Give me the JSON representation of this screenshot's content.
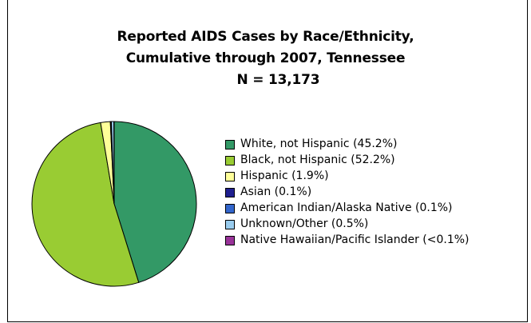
{
  "chart_data": {
    "type": "pie",
    "title": [
      "Reported AIDS Cases by Race/Ethnicity,",
      "Cumulative through 2007, Tennessee",
      "N = 13,173"
    ],
    "legend_position": "right",
    "slices": [
      {
        "label": "White, not Hispanic (45.2%)",
        "value": 45.2,
        "color": "#339966"
      },
      {
        "label": "Black, not Hispanic (52.2%)",
        "value": 52.2,
        "color": "#99cc33"
      },
      {
        "label": "Hispanic (1.9%)",
        "value": 1.9,
        "color": "#ffff99"
      },
      {
        "label": "Asian (0.1%)",
        "value": 0.1,
        "color": "#1f1f8f"
      },
      {
        "label": "American Indian/Alaska Native (0.1%)",
        "value": 0.1,
        "color": "#3366cc"
      },
      {
        "label": "Unknown/Other (0.5%)",
        "value": 0.5,
        "color": "#99ccee"
      },
      {
        "label": "Native Hawaiian/Pacific Islander (<0.1%)",
        "value": 0.05,
        "color": "#993399"
      }
    ]
  }
}
